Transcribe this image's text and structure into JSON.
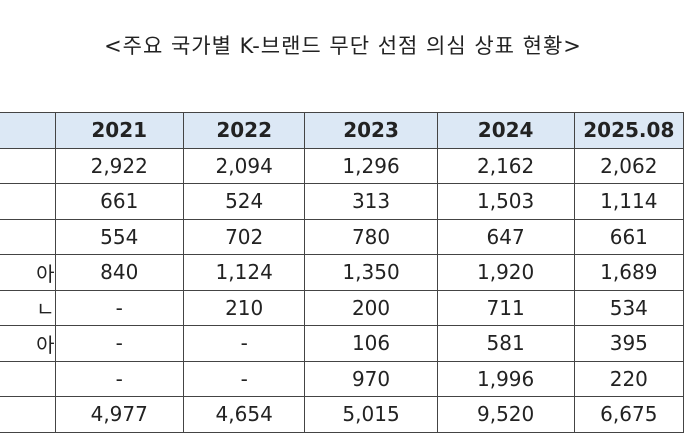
{
  "title": "<주요 국가별 K-브랜드 무단 선점 의심 상표 현황>",
  "table": {
    "headers": [
      "",
      "2021",
      "2022",
      "2023",
      "2024",
      "2025.08"
    ],
    "rows": [
      {
        "label": "",
        "values": [
          "2,922",
          "2,094",
          "1,296",
          "2,162",
          "2,062"
        ]
      },
      {
        "label": "",
        "values": [
          "661",
          "524",
          "313",
          "1,503",
          "1,114"
        ]
      },
      {
        "label": "",
        "values": [
          "554",
          "702",
          "780",
          "647",
          "661"
        ]
      },
      {
        "label": "아",
        "values": [
          "840",
          "1,124",
          "1,350",
          "1,920",
          "1,689"
        ]
      },
      {
        "label": "ㄴ",
        "values": [
          "-",
          "210",
          "200",
          "711",
          "534"
        ]
      },
      {
        "label": "아",
        "values": [
          "-",
          "-",
          "106",
          "581",
          "395"
        ]
      },
      {
        "label": "",
        "values": [
          "-",
          "-",
          "970",
          "1,996",
          "220"
        ]
      },
      {
        "label": "",
        "values": [
          "4,977",
          "4,654",
          "5,015",
          "9,520",
          "6,675"
        ]
      }
    ]
  }
}
